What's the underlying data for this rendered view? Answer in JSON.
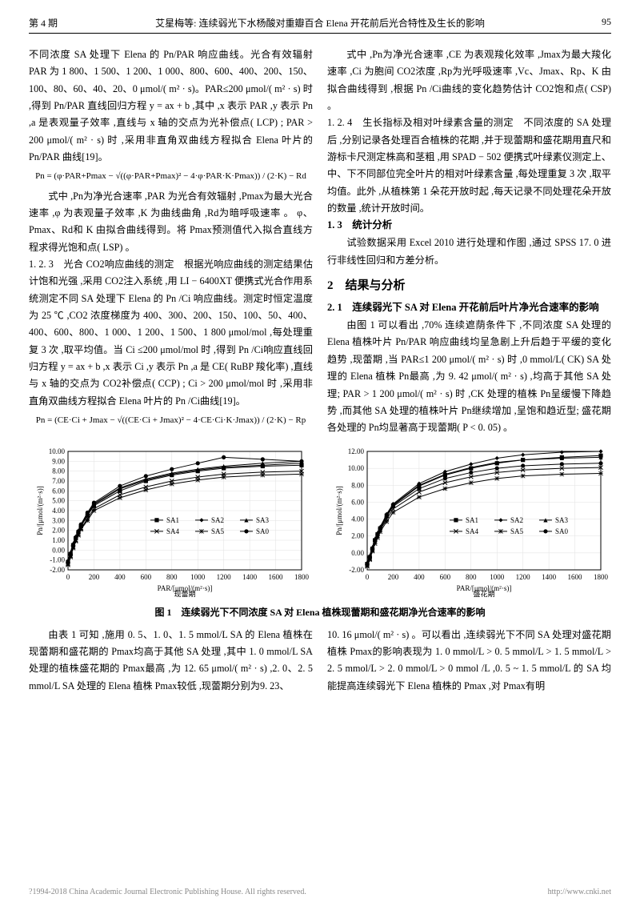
{
  "header": {
    "issue": "第 4 期",
    "title": "艾星梅等: 连续弱光下水杨酸对重瓣百合 Elena 开花前后光合特性及生长的影响",
    "page": "95"
  },
  "left_col": {
    "p1": "不同浓度 SA 处理下 Elena 的 Pn/PAR 响应曲线。光合有效辐射 PAR 为 1 800、1 500、1 200、1 000、800、600、400、200、150、100、80、60、40、20、0 μmol/( m² · s)。PAR≤200 μmol/( m² · s) 时 ,得到 Pn/PAR 直线回归方程 y = ax + b ,其中 ,x 表示 PAR ,y 表示 Pn ,a 是表观量子效率 ,直线与 x 轴的交点为光补偿点( LCP) ; PAR > 200 μmol/( m² · s) 时 ,采用非直角双曲线方程拟合 Elena 叶片的 Pn/PAR 曲线[19]。",
    "formula1": "Pn = (φ·PAR+Pmax − √((φ·PAR+Pmax)² − 4·φ·PAR·K·Pmax)) / (2·K) − Rd",
    "p2": "式中 ,Pn为净光合速率 ,PAR 为光合有效辐射 ,Pmax为最大光合速率 ,φ 为表观量子效率 ,K 为曲线曲角 ,Rd为暗呼吸速率 。 φ、Pmax、Rd和 K 由拟合曲线得到。将 Pmax预测值代入拟合直线方程求得光饱和点( LSP) 。",
    "p3_head": "1. 2. 3　光合 CO2响应曲线的测定",
    "p3": "根据光响应曲线的测定结果估计饱和光强 ,采用 CO2注入系统 ,用 LI − 6400XT 便携式光合作用系统测定不同 SA 处理下 Elena 的 Pn /Ci 响应曲线。测定时恒定温度为 25 ℃ ,CO2 浓度梯度为 400、300、200、150、100、50、400、400、600、800、1 000、1 200、1 500、1 800 μmol/mol ,每处理重复 3 次 ,取平均值。当 Ci ≤200 μmol/mol 时 ,得到 Pn /Ci响应直线回归方程 y = ax + b ,x 表示 Ci ,y 表示 Pn ,a 是 CE( RuBP 羧化率) ,直线与 x 轴的交点为 CO2补偿点( CCP) ; Ci > 200 μmol/mol 时 ,采用非直角双曲线方程拟合 Elena 叶片的 Pn /Ci曲线[19]。",
    "formula2": "Pn = (CE·Ci + Jmax − √((CE·Ci + Jmax)² − 4·CE·Ci·K·Jmax)) / (2·K) − Rp"
  },
  "right_col": {
    "p1": "式中 ,Pn为净光合速率 ,CE 为表观羧化效率 ,Jmax为最大羧化速率 ,Ci 为胞间 CO2浓度 ,Rp为光呼吸速率 ,Vc、Jmax、Rp、K 由拟合曲线得到 ,根据 Pn /Ci曲线的变化趋势估计 CO2饱和点( CSP) 。",
    "p2_head": "1. 2. 4　生长指标及相对叶绿素含量的测定",
    "p2": "不同浓度的 SA 处理后 ,分别记录各处理百合植株的花期 ,并于现蕾期和盛花期用直尺和游标卡尺测定株高和茎粗 ,用 SPAD − 502 便携式叶绿素仪测定上、中、下不同部位完全叶片的相对叶绿素含量 ,每处理重复 3 次 ,取平均值。此外 ,从植株第 1 朵花开放时起 ,每天记录不同处理花朵开放的数量 ,统计开放时间。",
    "p3_head": "1. 3　统计分析",
    "p3": "试验数据采用 Excel 2010 进行处理和作图 ,通过 SPSS 17. 0 进行非线性回归和方差分析。",
    "sec2": "2　结果与分析",
    "sec21": "2. 1　连续弱光下 SA 对 Elena 开花前后叶片净光合速率的影响",
    "p4": "由图 1 可以看出 ,70% 连续遮荫条件下 ,不同浓度 SA 处理的 Elena 植株叶片 Pn/PAR 响应曲线均呈急剧上升后趋于平缓的变化趋势 ,现蕾期 ,当 PAR≤1 200 μmol/( m² · s) 时 ,0 mmol/L( CK) SA 处理的 Elena 植株 Pn最高 ,为 9. 42 μmol/( m² · s) ,均高于其他 SA 处理; PAR > 1 200 μmol/( m² · s) 时 ,CK 处理的植株 Pn呈缓慢下降趋势 ,而其他 SA 处理的植株叶片 Pn继续增加 ,呈饱和趋近型; 盛花期各处理的 Pn均显著高于现蕾期( P < 0. 05) 。"
  },
  "figure": {
    "caption": "图 1　连续弱光下不同浓度 SA 对 Elena 植株现蕾期和盛花期净光合速率的影响",
    "left_label": "现蕾期",
    "right_label": "盛花期",
    "x_label": "PAR/[μmol/(m²·s)]",
    "y_label": "Pn/[μmol/(m²·s)]",
    "legend": [
      "SA1",
      "SA2",
      "SA3",
      "SA4",
      "SA5",
      "SA0"
    ],
    "left_chart": {
      "type": "line",
      "xlim": [
        0,
        1800
      ],
      "ylim": [
        -2,
        10
      ],
      "xticks": [
        0,
        200,
        400,
        600,
        800,
        1000,
        1200,
        1400,
        1600,
        1800
      ],
      "yticks": [
        -2,
        -1,
        0,
        1,
        2,
        3,
        4,
        5,
        6,
        7,
        8,
        9,
        10
      ],
      "x_vals": [
        0,
        20,
        40,
        60,
        80,
        100,
        150,
        200,
        400,
        600,
        800,
        1000,
        1200,
        1500,
        1800
      ],
      "series": {
        "SA0": [
          -1.3,
          -0.5,
          0.4,
          1.3,
          1.9,
          2.6,
          3.8,
          4.8,
          6.5,
          7.5,
          8.2,
          8.8,
          9.4,
          9.2,
          9.0
        ],
        "SA1": [
          -1.2,
          -0.4,
          0.5,
          1.2,
          1.8,
          2.4,
          3.5,
          4.5,
          6.0,
          7.0,
          7.6,
          8.0,
          8.3,
          8.5,
          8.6
        ],
        "SA2": [
          -1.1,
          -0.3,
          0.6,
          1.3,
          1.9,
          2.5,
          3.6,
          4.6,
          6.2,
          7.1,
          7.7,
          8.1,
          8.4,
          8.6,
          8.8
        ],
        "SA3": [
          -1.0,
          -0.2,
          0.7,
          1.4,
          2.0,
          2.6,
          3.7,
          4.7,
          6.3,
          7.2,
          7.8,
          8.2,
          8.5,
          8.8,
          9.0
        ],
        "SA4": [
          -1.4,
          -0.6,
          0.3,
          1.0,
          1.6,
          2.2,
          3.2,
          4.2,
          5.6,
          6.4,
          7.0,
          7.4,
          7.7,
          7.9,
          8.0
        ],
        "SA5": [
          -1.5,
          -0.7,
          0.2,
          0.9,
          1.5,
          2.1,
          3.0,
          4.0,
          5.3,
          6.1,
          6.7,
          7.1,
          7.4,
          7.6,
          7.7
        ]
      },
      "colors": {
        "grid": "#e0e0e0",
        "axis": "#000000",
        "bg": "#ffffff",
        "line": "#000000"
      },
      "font_size": 9
    },
    "right_chart": {
      "type": "line",
      "xlim": [
        0,
        1800
      ],
      "ylim": [
        -2,
        12
      ],
      "xticks": [
        0,
        200,
        400,
        600,
        800,
        1000,
        1200,
        1400,
        1600,
        1800
      ],
      "yticks": [
        -2,
        0,
        2,
        4,
        6,
        8,
        10,
        12
      ],
      "x_vals": [
        0,
        20,
        40,
        60,
        80,
        100,
        150,
        200,
        400,
        600,
        800,
        1000,
        1200,
        1500,
        1800
      ],
      "series": {
        "SA0": [
          -1.4,
          -0.6,
          0.4,
          1.4,
          2.1,
          2.8,
          4.3,
          5.5,
          7.6,
          8.8,
          9.5,
          10.0,
          10.3,
          10.5,
          10.6
        ],
        "SA1": [
          -1.3,
          -0.5,
          0.5,
          1.5,
          2.2,
          2.9,
          4.4,
          5.6,
          7.9,
          9.2,
          10.0,
          10.6,
          11.0,
          11.3,
          11.5
        ],
        "SA2": [
          -1.2,
          -0.4,
          0.6,
          1.6,
          2.3,
          3.0,
          4.6,
          5.8,
          8.2,
          9.6,
          10.5,
          11.2,
          11.6,
          11.9,
          12.0
        ],
        "SA3": [
          -1.1,
          -0.3,
          0.7,
          1.7,
          2.4,
          3.1,
          4.5,
          5.7,
          8.0,
          9.3,
          10.1,
          10.7,
          11.0,
          11.2,
          11.3
        ],
        "SA4": [
          -1.5,
          -0.7,
          0.3,
          1.3,
          2.0,
          2.7,
          4.0,
          5.2,
          7.2,
          8.3,
          9.0,
          9.5,
          9.8,
          10.0,
          10.1
        ],
        "SA5": [
          -1.6,
          -0.8,
          0.2,
          1.1,
          1.8,
          2.5,
          3.7,
          4.8,
          6.6,
          7.6,
          8.3,
          8.8,
          9.1,
          9.3,
          9.4
        ]
      },
      "colors": {
        "grid": "#e0e0e0",
        "axis": "#000000",
        "bg": "#ffffff",
        "line": "#000000"
      },
      "font_size": 9
    },
    "markers": {
      "SA1": "square-filled",
      "SA2": "diamond-filled",
      "SA3": "triangle-filled",
      "SA4": "x",
      "SA5": "asterisk",
      "SA0": "circle-filled"
    }
  },
  "bottom_left": {
    "p1": "由表 1 可知 ,施用 0. 5、1. 0、1. 5 mmol/L SA 的 Elena 植株在现蕾期和盛花期的 Pmax均高于其他 SA 处理 ,其中 1. 0 mmol/L SA 处理的植株盛花期的 Pmax最高 ,为 12. 65 μmol/( m² · s) ,2. 0、2. 5 mmol/L SA 处理的 Elena 植株 Pmax较低 ,现蕾期分别为9. 23、"
  },
  "bottom_right": {
    "p1": "10. 16 μmol/( m² · s) 。可以看出 ,连续弱光下不同 SA 处理对盛花期植株 Pmax的影响表现为 1. 0 mmol/L > 0. 5 mmol/L > 1. 5 mmol/L > 2. 5 mmol/L > 2. 0 mmol/L > 0 mmol /L ,0. 5 ~ 1. 5 mmol/L 的 SA 均能提高连续弱光下 Elena 植株的 Pmax ,对 Pmax有明"
  },
  "footer": {
    "copy": "?1994-2018 China Academic Journal Electronic Publishing House. All rights reserved.",
    "url": "http://www.cnki.net"
  }
}
